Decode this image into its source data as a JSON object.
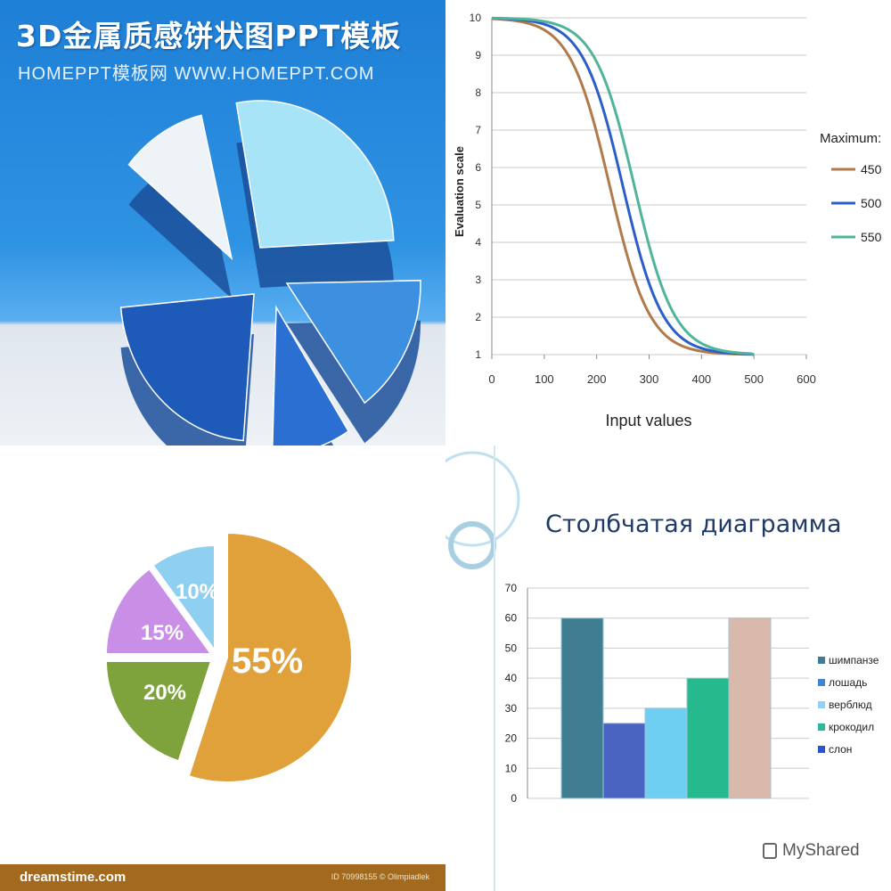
{
  "panels": {
    "ppt": {
      "title": "3D金属质感饼状图PPT模板",
      "subtitle": "HOMEPPT模板网 WWW.HOMEPPT.COM"
    },
    "dreamstime": {
      "brand": "dreamstime.com",
      "id_text": "ID 70998155 © Olimpiadlek"
    },
    "bar_slide": {
      "title": "Столбчатая диаграмма",
      "watermark": "MyShared"
    }
  },
  "chart_data": [
    {
      "type": "pie",
      "style": "3d",
      "slices": [
        {
          "label": "",
          "color": "#a8e4f7"
        },
        {
          "label": "",
          "color": "#eef3f8"
        },
        {
          "label": "",
          "color": "#3d8fe0"
        },
        {
          "label": "",
          "color": "#2a6fd1"
        },
        {
          "label": "",
          "color": "#1e5bb8"
        }
      ]
    },
    {
      "type": "line",
      "xlabel": "Input values",
      "ylabel": "Evaluation scale",
      "xlim": [
        0,
        600
      ],
      "ylim": [
        1,
        10
      ],
      "xticks": [
        0,
        100,
        200,
        300,
        400,
        500,
        600
      ],
      "yticks": [
        1,
        2,
        3,
        4,
        5,
        6,
        7,
        8,
        9,
        10
      ],
      "grid": true,
      "legend_title": "Maximum:",
      "legend_position": "right",
      "series": [
        {
          "name": "450",
          "color": "#b07a4a",
          "midpoint": 225,
          "max": 500
        },
        {
          "name": "500",
          "color": "#2a5ec8",
          "midpoint": 250,
          "max": 500
        },
        {
          "name": "550",
          "color": "#4fb59a",
          "midpoint": 272,
          "max": 500
        }
      ],
      "x": [
        0,
        50,
        100,
        150,
        200,
        250,
        300,
        350,
        400,
        450,
        500
      ]
    },
    {
      "type": "pie",
      "slices": [
        {
          "label": "55%",
          "value": 55,
          "color": "#e0a13a"
        },
        {
          "label": "20%",
          "value": 20,
          "color": "#7ea23c"
        },
        {
          "label": "15%",
          "value": 15,
          "color": "#c98ee6"
        },
        {
          "label": "10%",
          "value": 10,
          "color": "#8fcff0"
        }
      ]
    },
    {
      "type": "bar",
      "categories": [
        "шимпанзе",
        "лошадь",
        "верблюд",
        "крокодил",
        "слон"
      ],
      "values": [
        60,
        25,
        30,
        40,
        60
      ],
      "colors": [
        "#3f7e92",
        "#4a64c2",
        "#6ecff2",
        "#26b98e",
        "#d8b9ac"
      ],
      "legend": [
        {
          "name": "шимпанзе",
          "color": "#3f7e92"
        },
        {
          "name": "лошадь",
          "color": "#3f86d8"
        },
        {
          "name": "верблюд",
          "color": "#8fd3f4"
        },
        {
          "name": "крокодил",
          "color": "#28b89a"
        },
        {
          "name": "слон",
          "color": "#2a56c9"
        }
      ],
      "ylim": [
        0,
        70
      ],
      "yticks": [
        0,
        10,
        20,
        30,
        40,
        50,
        60,
        70
      ],
      "legend_position": "right"
    }
  ]
}
